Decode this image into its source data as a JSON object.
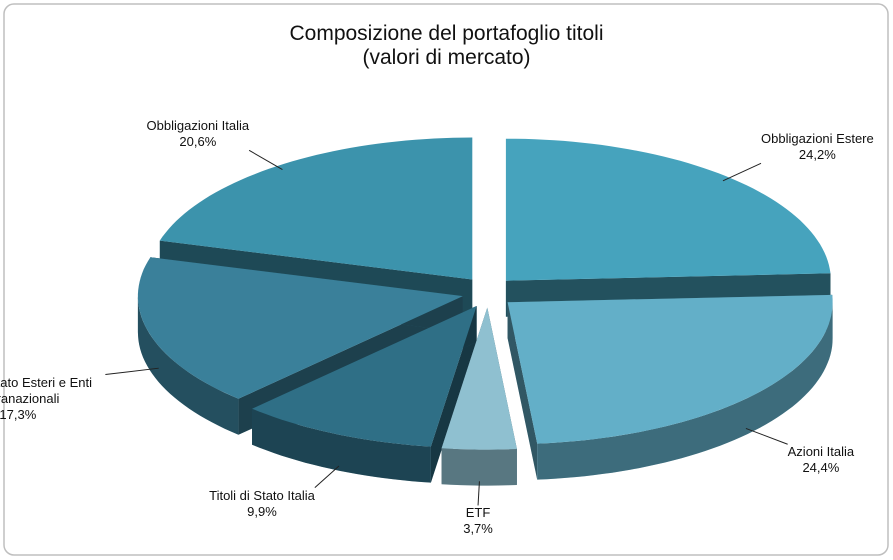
{
  "chart_data": {
    "type": "pie3d",
    "title": "Composizione del portafoglio titoli",
    "subtitle": "(valori di mercato)",
    "categories": [
      "Obbligazioni Estere",
      "Azioni Italia",
      "ETF",
      "Titoli di Stato Italia",
      "Titoli di Stato Esteri e Enti sovranazionali",
      "Obbligazioni Italia"
    ],
    "values": [
      24.2,
      24.4,
      3.7,
      9.9,
      17.3,
      20.6
    ],
    "value_labels": [
      "24,2%",
      "24,4%",
      "3,7%",
      "9,9%",
      "17,3%",
      "20,6%"
    ],
    "colors": [
      "#46a3bd",
      "#63afc8",
      "#8fc0d0",
      "#2f6f86",
      "#3a809a",
      "#3c93ac"
    ]
  }
}
